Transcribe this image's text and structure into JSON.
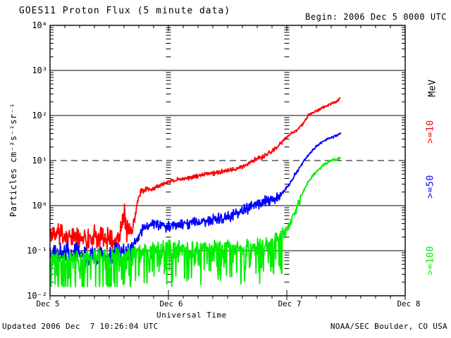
{
  "header": {
    "title": "GOES11 Proton Flux (5 minute data)",
    "begin_label": "Begin: 2006 Dec 5 0000 UTC"
  },
  "footer": {
    "updated": "Updated 2006 Dec  7 10:26:04 UTC",
    "source": "NOAA/SEC Boulder, CO USA"
  },
  "colors": {
    "background": "#ffffff",
    "axis": "#000000",
    "red": "#ff0000",
    "blue": "#0000ff",
    "green": "#00ee00"
  },
  "chart_data": {
    "type": "line",
    "title": "GOES11 Proton Flux (5 minute data)",
    "xlabel": "Universal Time",
    "ylabel": "Particles cm⁻²s⁻¹sr⁻¹",
    "x_axis": {
      "unit": "days",
      "range_days": [
        0,
        3
      ],
      "minor_tick_hours": 3,
      "day_gridline_days": [
        1,
        2
      ]
    },
    "y_axis": {
      "scale": "log",
      "ylim": [
        0.01,
        10000
      ],
      "dashed_gridline_value": 10
    },
    "x_ticks": [
      {
        "label": "Dec 5",
        "day": 0
      },
      {
        "label": "Dec 6",
        "day": 1
      },
      {
        "label": "Dec 7",
        "day": 2
      },
      {
        "label": "Dec 8",
        "day": 3
      }
    ],
    "y_ticks": [
      {
        "label": "10⁴",
        "value": 10000
      },
      {
        "label": "10³",
        "value": 1000
      },
      {
        "label": "10²",
        "value": 100
      },
      {
        "label": "10¹",
        "value": 10
      },
      {
        "label": "10⁰",
        "value": 1
      },
      {
        "label": "10⁻¹",
        "value": 0.1
      },
      {
        "label": "10⁻²",
        "value": 0.01
      }
    ],
    "legend": {
      "unit": "MeV",
      "entries": [
        {
          "key": "ge10",
          "label": ">=10",
          "color": "#ff0000"
        },
        {
          "key": "ge50",
          "label": ">=50",
          "color": "#0000ff"
        },
        {
          "key": "ge100",
          "label": ">=100",
          "color": "#00ee00"
        }
      ]
    },
    "series": [
      {
        "key": "ge10",
        "name": ">=10 MeV",
        "color": "#ff0000",
        "end_day": 2.455,
        "floor": 0.012,
        "anchors": [
          [
            0.0,
            0.22
          ],
          [
            0.1,
            0.24
          ],
          [
            0.2,
            0.19
          ],
          [
            0.3,
            0.17
          ],
          [
            0.4,
            0.21
          ],
          [
            0.5,
            0.18
          ],
          [
            0.57,
            0.16
          ],
          [
            0.6,
            0.3
          ],
          [
            0.625,
            0.75
          ],
          [
            0.645,
            0.28
          ],
          [
            0.68,
            0.3
          ],
          [
            0.71,
            0.45
          ],
          [
            0.73,
            0.95
          ],
          [
            0.75,
            1.6
          ],
          [
            0.77,
            2.2
          ],
          [
            0.82,
            2.4
          ],
          [
            0.87,
            2.3
          ],
          [
            0.93,
            2.9
          ],
          [
            1.0,
            3.4
          ],
          [
            1.1,
            3.9
          ],
          [
            1.2,
            4.3
          ],
          [
            1.3,
            4.9
          ],
          [
            1.4,
            5.4
          ],
          [
            1.5,
            5.9
          ],
          [
            1.6,
            7.0
          ],
          [
            1.66,
            8.0
          ],
          [
            1.71,
            10.0
          ],
          [
            1.76,
            11.2
          ],
          [
            1.8,
            12.5
          ],
          [
            1.85,
            15.0
          ],
          [
            1.9,
            18.0
          ],
          [
            1.95,
            24.0
          ],
          [
            2.0,
            33.0
          ],
          [
            2.05,
            42.0
          ],
          [
            2.09,
            48.0
          ],
          [
            2.13,
            62.0
          ],
          [
            2.18,
            100.0
          ],
          [
            2.23,
            118.0
          ],
          [
            2.28,
            138.0
          ],
          [
            2.33,
            160.0
          ],
          [
            2.38,
            185.0
          ],
          [
            2.43,
            215.0
          ],
          [
            2.455,
            248.0
          ]
        ],
        "noise": [
          {
            "until": 0.7,
            "up": 0.32,
            "down": 0.3,
            "spiky": false
          },
          {
            "until": 0.8,
            "up": 0.12,
            "down": 0.12,
            "spiky": false
          },
          {
            "until": 1.97,
            "up": 0.055,
            "down": 0.06,
            "spiky": false
          },
          {
            "until": 3.0,
            "up": 0.035,
            "down": 0.035,
            "spiky": false
          }
        ]
      },
      {
        "key": "ge50",
        "name": ">=50 MeV",
        "color": "#0000ff",
        "end_day": 2.455,
        "floor": 0.012,
        "anchors": [
          [
            0.0,
            0.085
          ],
          [
            0.15,
            0.092
          ],
          [
            0.3,
            0.08
          ],
          [
            0.4,
            0.072
          ],
          [
            0.5,
            0.08
          ],
          [
            0.6,
            0.095
          ],
          [
            0.66,
            0.1
          ],
          [
            0.7,
            0.12
          ],
          [
            0.74,
            0.2
          ],
          [
            0.78,
            0.32
          ],
          [
            0.84,
            0.4
          ],
          [
            0.9,
            0.41
          ],
          [
            0.97,
            0.36
          ],
          [
            1.05,
            0.38
          ],
          [
            1.15,
            0.42
          ],
          [
            1.25,
            0.45
          ],
          [
            1.35,
            0.5
          ],
          [
            1.45,
            0.55
          ],
          [
            1.55,
            0.65
          ],
          [
            1.63,
            0.82
          ],
          [
            1.7,
            1.02
          ],
          [
            1.8,
            1.25
          ],
          [
            1.9,
            1.48
          ],
          [
            1.97,
            2.0
          ],
          [
            2.02,
            3.0
          ],
          [
            2.06,
            4.5
          ],
          [
            2.1,
            6.5
          ],
          [
            2.14,
            9.5
          ],
          [
            2.18,
            13.0
          ],
          [
            2.22,
            17.0
          ],
          [
            2.26,
            22.0
          ],
          [
            2.31,
            27.0
          ],
          [
            2.36,
            31.5
          ],
          [
            2.41,
            35.0
          ],
          [
            2.455,
            40.0
          ]
        ],
        "noise": [
          {
            "until": 0.72,
            "up": 0.26,
            "down": 0.28,
            "spiky": false
          },
          {
            "until": 1.95,
            "up": 0.12,
            "down": 0.17,
            "spiky": false
          },
          {
            "until": 2.1,
            "up": 0.05,
            "down": 0.06,
            "spiky": false
          },
          {
            "until": 3.0,
            "up": 0.03,
            "down": 0.03,
            "spiky": false
          }
        ]
      },
      {
        "key": "ge100",
        "name": ">=100 MeV",
        "color": "#00ee00",
        "end_day": 2.455,
        "floor": 0.016,
        "anchors": [
          [
            0.0,
            0.06
          ],
          [
            0.2,
            0.062
          ],
          [
            0.4,
            0.07
          ],
          [
            0.6,
            0.082
          ],
          [
            0.8,
            0.1
          ],
          [
            1.0,
            0.11
          ],
          [
            1.2,
            0.105
          ],
          [
            1.4,
            0.11
          ],
          [
            1.6,
            0.115
          ],
          [
            1.75,
            0.12
          ],
          [
            1.88,
            0.14
          ],
          [
            1.95,
            0.2
          ],
          [
            2.0,
            0.3
          ],
          [
            2.04,
            0.48
          ],
          [
            2.08,
            0.85
          ],
          [
            2.11,
            1.4
          ],
          [
            2.14,
            2.1
          ],
          [
            2.18,
            3.3
          ],
          [
            2.22,
            4.6
          ],
          [
            2.26,
            6.0
          ],
          [
            2.3,
            7.5
          ],
          [
            2.34,
            9.0
          ],
          [
            2.38,
            10.0
          ],
          [
            2.43,
            11.0
          ],
          [
            2.455,
            11.6
          ]
        ],
        "noise": [
          {
            "until": 1.97,
            "up": 0.2,
            "down": 0.9,
            "spiky": true
          },
          {
            "until": 2.12,
            "up": 0.08,
            "down": 0.18,
            "spiky": true
          },
          {
            "until": 3.0,
            "up": 0.035,
            "down": 0.035,
            "spiky": false
          }
        ]
      }
    ]
  }
}
